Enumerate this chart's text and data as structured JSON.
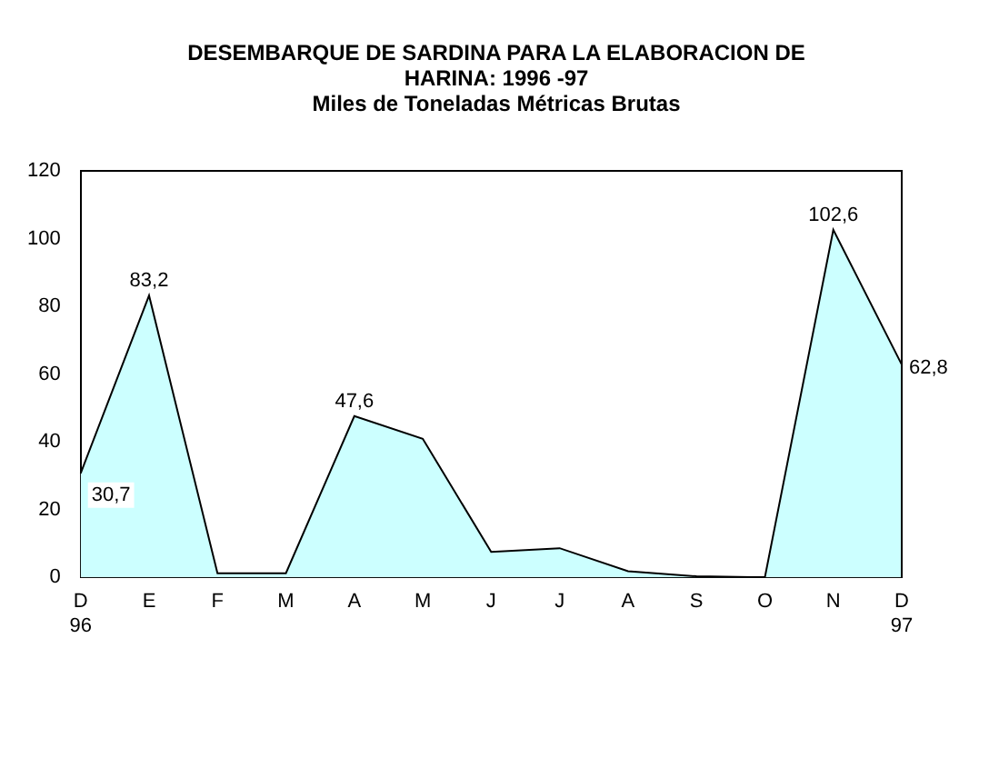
{
  "chart_data": {
    "type": "area",
    "title": "DESEMBARQUE DE SARDINA PARA LA ELABORACION DE HARINA: 1996 -97",
    "subtitle": "Miles de Toneladas Métricas Brutas",
    "categories": [
      "D\n96",
      "E",
      "F",
      "M",
      "A",
      "M",
      "J",
      "J",
      "A",
      "S",
      "O",
      "N",
      "D\n97"
    ],
    "series": [
      {
        "color": "#ccffff",
        "values": [
          30.7,
          83.2,
          1.2,
          1.2,
          47.6,
          40.9,
          7.5,
          8.6,
          1.8,
          0.3,
          0,
          102.6,
          62.8
        ],
        "value_labels": [
          "30,7",
          "83,2",
          null,
          null,
          "47,6",
          null,
          null,
          null,
          null,
          null,
          null,
          "102,6",
          "62,8"
        ]
      }
    ],
    "ylim": [
      0,
      120
    ],
    "yticks": [
      0,
      20,
      40,
      60,
      80,
      100,
      120
    ],
    "grid": false,
    "legend": false
  }
}
